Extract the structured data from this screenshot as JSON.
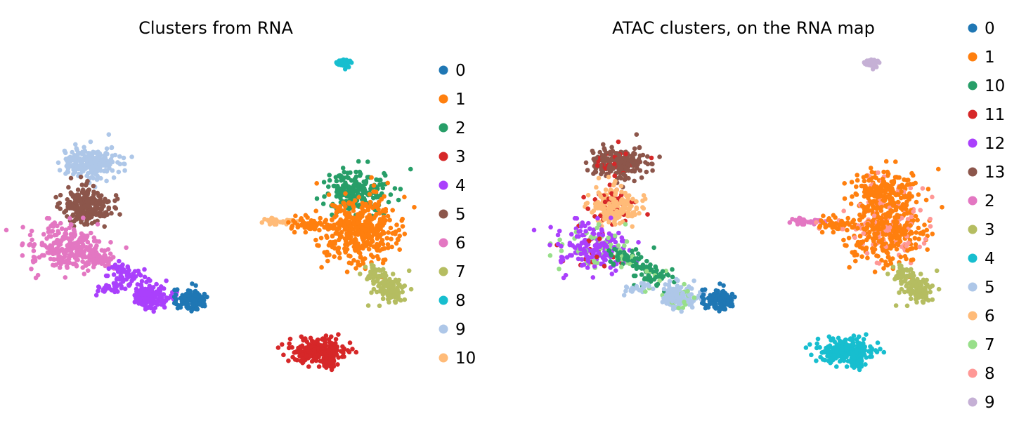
{
  "chart_data": [
    {
      "type": "scatter",
      "title": "Clusters from RNA",
      "legend_position": "right",
      "series": [
        {
          "name": "0",
          "color": "#1f77b4"
        },
        {
          "name": "1",
          "color": "#ff7f0e"
        },
        {
          "name": "2",
          "color": "#279e68"
        },
        {
          "name": "3",
          "color": "#d62728"
        },
        {
          "name": "4",
          "color": "#aa40fc"
        },
        {
          "name": "5",
          "color": "#8c564b"
        },
        {
          "name": "6",
          "color": "#e377c2"
        },
        {
          "name": "7",
          "color": "#b5bd61"
        },
        {
          "name": "8",
          "color": "#17becf"
        },
        {
          "name": "9",
          "color": "#aec7e8"
        },
        {
          "name": "10",
          "color": "#ffbb78"
        }
      ]
    },
    {
      "type": "scatter",
      "title": "ATAC clusters, on the RNA map",
      "legend_position": "right",
      "series": [
        {
          "name": "0",
          "color": "#1f77b4"
        },
        {
          "name": "1",
          "color": "#ff7f0e"
        },
        {
          "name": "10",
          "color": "#279e68"
        },
        {
          "name": "11",
          "color": "#d62728"
        },
        {
          "name": "12",
          "color": "#aa40fc"
        },
        {
          "name": "13",
          "color": "#8c564b"
        },
        {
          "name": "2",
          "color": "#e377c2"
        },
        {
          "name": "3",
          "color": "#b5bd61"
        },
        {
          "name": "4",
          "color": "#17becf"
        },
        {
          "name": "5",
          "color": "#aec7e8"
        },
        {
          "name": "6",
          "color": "#ffbb78"
        },
        {
          "name": "7",
          "color": "#98df8a"
        },
        {
          "name": "8",
          "color": "#ff9896"
        },
        {
          "name": "9",
          "color": "#c5b0d5"
        }
      ]
    }
  ]
}
